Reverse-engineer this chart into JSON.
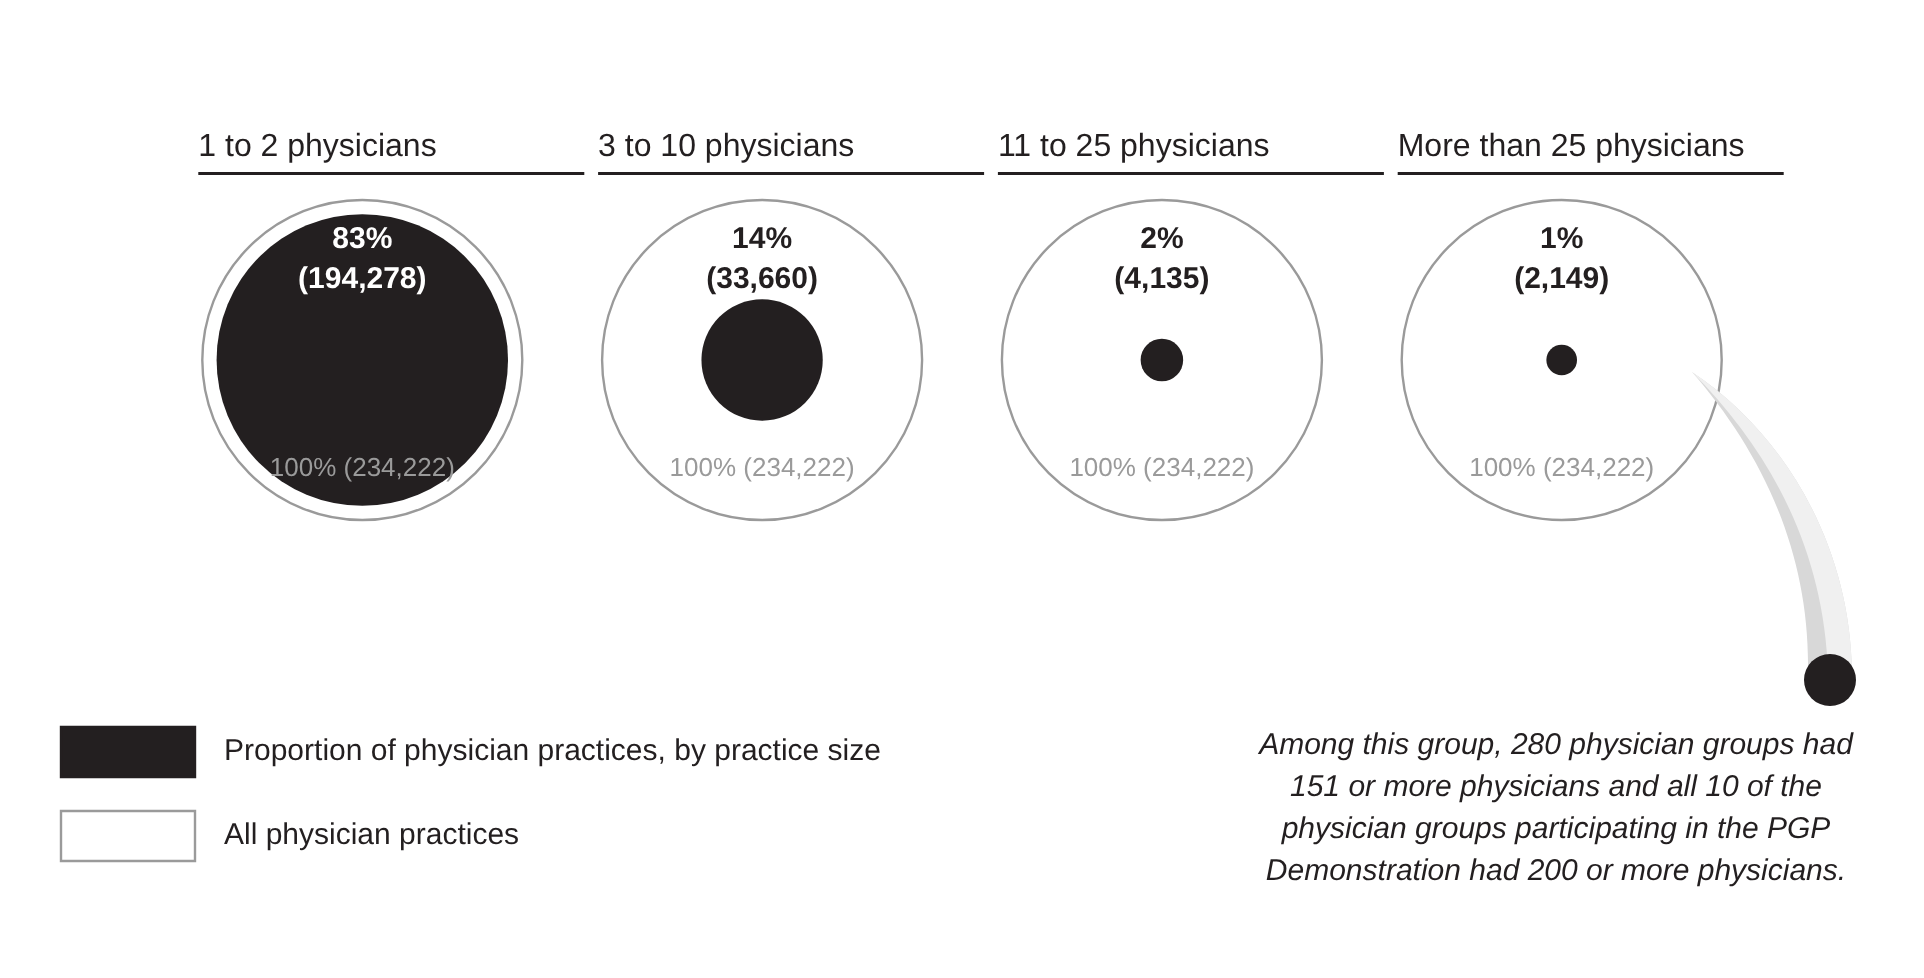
{
  "chart_data": {
    "type": "other",
    "categories": [
      "1 to 2 physicians",
      "3 to 10 physicians",
      "11 to 25 physicians",
      "More than 25 physicians"
    ],
    "series": [
      {
        "name": "Proportion of physician practices, by practice size",
        "color": "#231f20",
        "values": [
          194278,
          33660,
          4135,
          2149
        ],
        "value_labels": [
          "83% (194,278)",
          "14% (33,660)",
          "2% (4,135)",
          "1% (2,149)"
        ]
      },
      {
        "name": "All physician practices",
        "color": "#9a9a9a",
        "values": [
          234222,
          234222,
          234222,
          234222
        ],
        "value_labels": [
          "100% (234,222)",
          "100% (234,222)",
          "100% (234,222)",
          "100% (234,222)"
        ]
      }
    ],
    "legend": "bottom",
    "annotations": [
      "Among this group, 280 physician groups had 151 or more physicians and all 10 of the physician groups participating in the PGP Demonstration had 200 or more physicians."
    ]
  }
}
